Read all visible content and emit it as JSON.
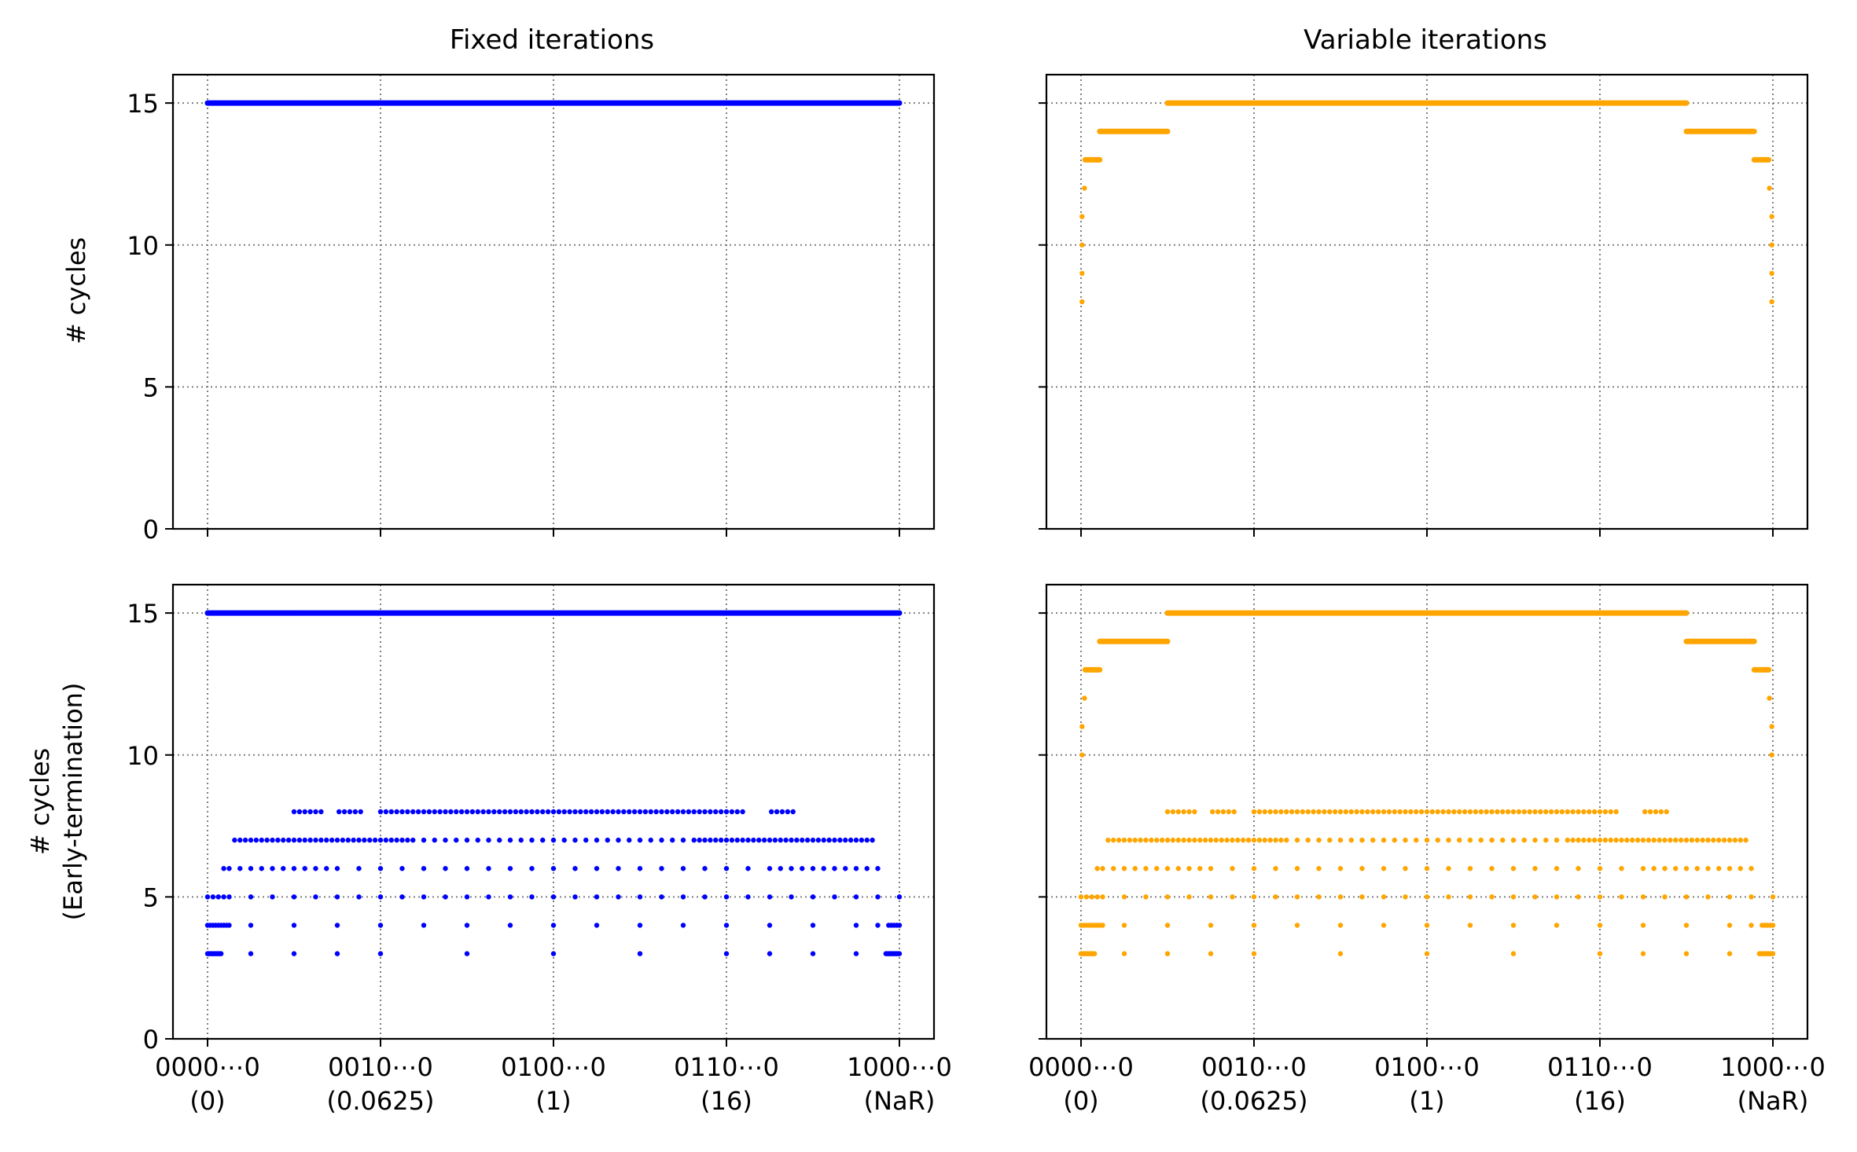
{
  "figure": {
    "titles": [
      "Fixed iterations",
      "Variable iterations"
    ],
    "ylabels": [
      "# cycles",
      "# cycles",
      "(Early-termination)"
    ]
  },
  "chart_data": [
    {
      "type": "scatter",
      "title": "Fixed iterations",
      "xlabel": "",
      "ylabel": "# cycles",
      "xlim": [
        -0.05,
        1.05
      ],
      "ylim": [
        0,
        16
      ],
      "grid": true,
      "xticks": {
        "values": [
          0,
          0.25,
          0.5,
          0.75,
          1
        ],
        "labels": [
          "0000⋯0",
          "0010⋯0",
          "0100⋯0",
          "0110⋯0",
          "1000⋯0"
        ],
        "sublabels": [
          "(0)",
          "(0.0625)",
          "(1)",
          "(16)",
          "(NaR)"
        ]
      },
      "yticks": [
        0,
        5,
        10,
        15
      ],
      "series": [
        {
          "color": "#0000ff",
          "bands": [
            {
              "y": 15,
              "x0": 0,
              "x1": 1
            }
          ]
        }
      ]
    },
    {
      "type": "scatter",
      "title": "Variable iterations",
      "xlabel": "",
      "ylabel": "",
      "xlim": [
        -0.05,
        1.05
      ],
      "ylim": [
        0,
        16
      ],
      "grid": true,
      "xticks": {
        "values": [
          0,
          0.25,
          0.5,
          0.75,
          1
        ],
        "labels": [
          "0000⋯0",
          "0010⋯0",
          "0100⋯0",
          "0110⋯0",
          "1000⋯0"
        ],
        "sublabels": [
          "(0)",
          "(0.0625)",
          "(1)",
          "(16)",
          "(NaR)"
        ]
      },
      "yticks": [
        0,
        5,
        10,
        15
      ],
      "series": [
        {
          "color": "#ffa500",
          "bands": [
            {
              "y": 15,
              "x0": 0.125,
              "x1": 0.875
            },
            {
              "y": 14,
              "x0": 0.027,
              "x1": 0.125
            },
            {
              "y": 14,
              "x0": 0.875,
              "x1": 0.973
            },
            {
              "y": 13,
              "x0": 0.006,
              "x1": 0.027
            },
            {
              "y": 13,
              "x0": 0.973,
              "x1": 0.994
            }
          ],
          "points": [
            {
              "x": 0.0015,
              "y": 8
            },
            {
              "x": 0.0015,
              "y": 9
            },
            {
              "x": 0.0015,
              "y": 10
            },
            {
              "x": 0.0015,
              "y": 11
            },
            {
              "x": 0.005,
              "y": 12
            },
            {
              "x": 0.995,
              "y": 12
            },
            {
              "x": 0.9985,
              "y": 11
            },
            {
              "x": 0.9985,
              "y": 10
            },
            {
              "x": 0.9985,
              "y": 9
            },
            {
              "x": 0.9985,
              "y": 8
            }
          ]
        }
      ]
    },
    {
      "type": "scatter",
      "title": "",
      "xlabel": "",
      "ylabel": "# cycles (Early-termination)",
      "xlim": [
        -0.05,
        1.05
      ],
      "ylim": [
        0,
        16
      ],
      "grid": true,
      "xticks": {
        "values": [
          0,
          0.25,
          0.5,
          0.75,
          1
        ],
        "labels": [
          "0000⋯0",
          "0010⋯0",
          "0100⋯0",
          "0110⋯0",
          "1000⋯0"
        ],
        "sublabels": [
          "(0)",
          "(0.0625)",
          "(1)",
          "(16)",
          "(NaR)"
        ]
      },
      "yticks": [
        0,
        5,
        10,
        15
      ],
      "series": [
        {
          "color": "#0000ff",
          "bands": [
            {
              "y": 15,
              "x0": 0,
              "x1": 1
            }
          ],
          "pattern": {
            "x0": 0,
            "x1": 1,
            "min_y": 3,
            "max_y": 8,
            "period": 0.25
          }
        }
      ]
    },
    {
      "type": "scatter",
      "title": "",
      "xlabel": "",
      "ylabel": "",
      "xlim": [
        -0.05,
        1.05
      ],
      "ylim": [
        0,
        16
      ],
      "grid": true,
      "xticks": {
        "values": [
          0,
          0.25,
          0.5,
          0.75,
          1
        ],
        "labels": [
          "0000⋯0",
          "0010⋯0",
          "0100⋯0",
          "0110⋯0",
          "1000⋯0"
        ],
        "sublabels": [
          "(0)",
          "(0.0625)",
          "(1)",
          "(16)",
          "(NaR)"
        ]
      },
      "yticks": [
        0,
        5,
        10,
        15
      ],
      "series": [
        {
          "color": "#ffa500",
          "bands": [
            {
              "y": 15,
              "x0": 0.125,
              "x1": 0.875
            },
            {
              "y": 14,
              "x0": 0.027,
              "x1": 0.125
            },
            {
              "y": 14,
              "x0": 0.875,
              "x1": 0.973
            },
            {
              "y": 13,
              "x0": 0.006,
              "x1": 0.027
            },
            {
              "y": 13,
              "x0": 0.973,
              "x1": 0.994
            }
          ],
          "points": [
            {
              "x": 0.0015,
              "y": 10
            },
            {
              "x": 0.0015,
              "y": 11
            },
            {
              "x": 0.005,
              "y": 12
            },
            {
              "x": 0.995,
              "y": 12
            },
            {
              "x": 0.9985,
              "y": 11
            },
            {
              "x": 0.9985,
              "y": 10
            }
          ],
          "pattern": {
            "x0": 0,
            "x1": 1,
            "min_y": 3,
            "max_y": 8,
            "period": 0.25
          }
        }
      ]
    }
  ]
}
